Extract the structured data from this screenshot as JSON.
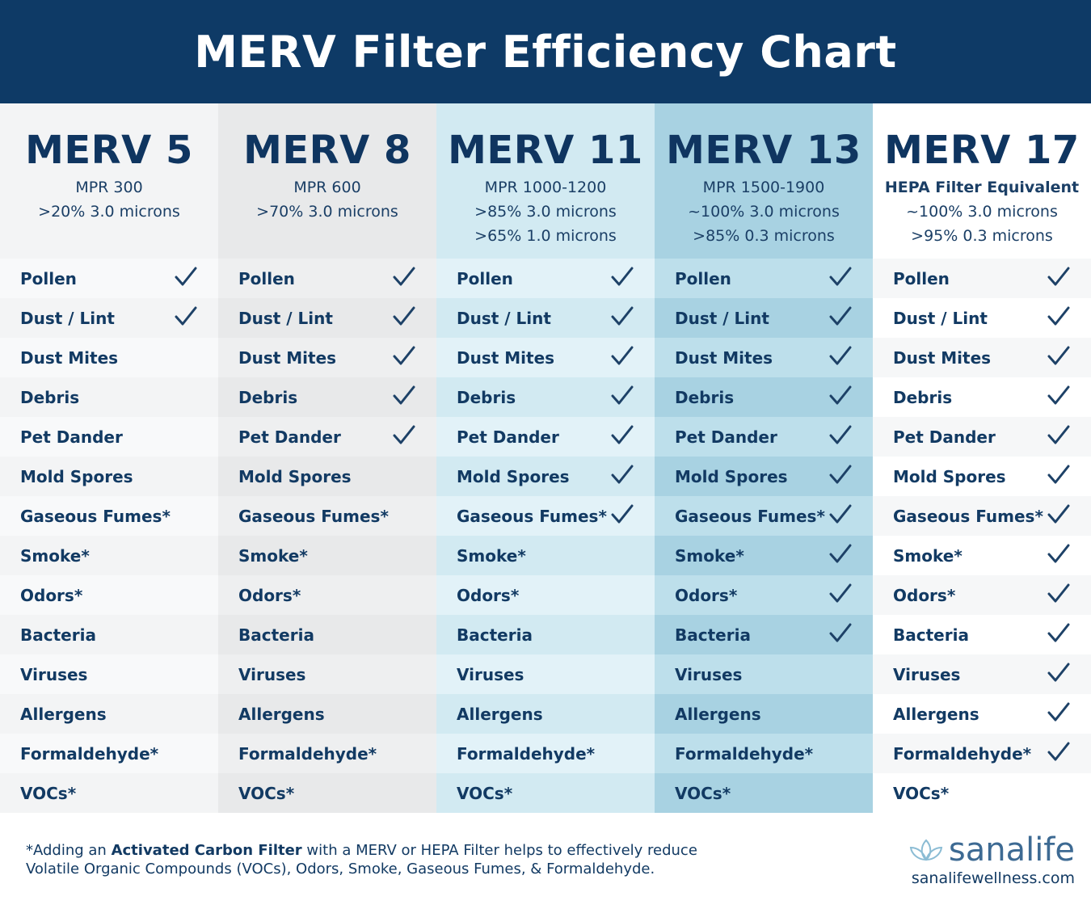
{
  "title": "MERV Filter Efficiency Chart",
  "colors": {
    "header": "#0e3a66",
    "text": "#0f3560"
  },
  "columns": [
    {
      "name": "MERV 5",
      "specs": [
        "MPR 300",
        ">20% 3.0 microns"
      ],
      "bg": "#f3f4f5",
      "bg_alt": "#f8f9fa",
      "checked_count": 2
    },
    {
      "name": "MERV 8",
      "specs": [
        "MPR 600",
        ">70% 3.0 microns"
      ],
      "bg": "#e8e9ea",
      "bg_alt": "#eeeff0",
      "checked_count": 5
    },
    {
      "name": "MERV 11",
      "specs": [
        "MPR 1000-1200",
        ">85% 3.0 microns",
        ">65% 1.0 microns"
      ],
      "bg": "#d2eaf2",
      "bg_alt": "#e2f2f8",
      "checked_count": 7
    },
    {
      "name": "MERV 13",
      "specs": [
        "MPR 1500-1900",
        "~100% 3.0 microns",
        ">85% 0.3 microns"
      ],
      "bg": "#a8d2e2",
      "bg_alt": "#bddfeb",
      "checked_count": 10
    },
    {
      "name": "MERV 17",
      "specs": [
        "HEPA Filter Equivalent",
        "~100% 3.0 microns",
        ">95% 0.3 microns"
      ],
      "bold_first_spec": true,
      "bg": "#ffffff",
      "bg_alt": "#f6f7f8",
      "checked_count": 13
    }
  ],
  "contaminants": [
    "Pollen",
    "Dust / Lint",
    "Dust Mites",
    "Debris",
    "Pet Dander",
    "Mold Spores",
    "Gaseous Fumes*",
    "Smoke*",
    "Odors*",
    "Bacteria",
    "Viruses",
    "Allergens",
    "Formaldehyde*",
    "VOCs*"
  ],
  "footnote": {
    "prefix": "*Adding an ",
    "bold": "Activated Carbon Filter",
    "suffix": " with a MERV or HEPA Filter helps to effectively reduce",
    "line2": "Volatile Organic Compounds (VOCs), Odors, Smoke, Gaseous Fumes, & Formaldehyde."
  },
  "logo": {
    "brand": "sanalife",
    "url": "sanalifewellness.com"
  }
}
